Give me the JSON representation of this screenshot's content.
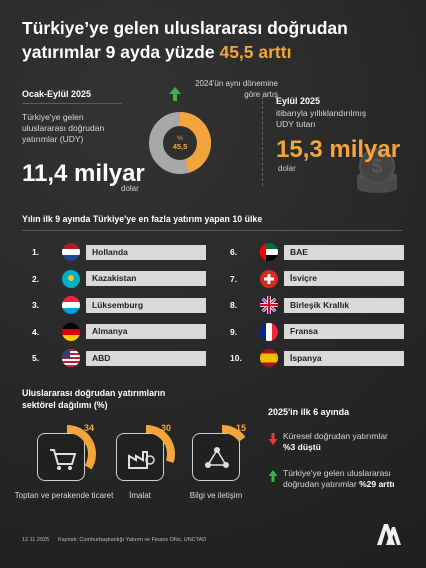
{
  "title": {
    "line1": "Türkiye’ye gelen uluslararası doğrudan",
    "line2_part1": "yatırımlar 9 ayda yüzde ",
    "line2_highlight": "45,5 arttı"
  },
  "left_block": {
    "period_label": "Ocak-Eylül 2025",
    "desc": "Türkiye'ye gelen uluslararası doğrudan yatırımlar (UDY)",
    "value": "11,4 milyar",
    "unit": "dolar"
  },
  "middle_block": {
    "note": "2024'ün aynı dönemine göre artış",
    "donut_label_pct": "%",
    "donut_label_val": "45,5",
    "arrow_icon": "up-arrow-icon"
  },
  "right_block": {
    "period_label": "Eylül 2025",
    "desc": "itibarıyla yıllıklandırılmış UDY tutarı",
    "value": "15,3 milyar",
    "unit": "dolar"
  },
  "countries_title": "Yılın ilk 9 ayında Türkiye'ye en fazla yatırım yapan 10 ülke",
  "countries": [
    {
      "rank": "1.",
      "name": "Hollanda"
    },
    {
      "rank": "2.",
      "name": "Kazakistan"
    },
    {
      "rank": "3.",
      "name": "Lüksemburg"
    },
    {
      "rank": "4.",
      "name": "Almanya"
    },
    {
      "rank": "5.",
      "name": "ABD"
    },
    {
      "rank": "6.",
      "name": "BAE"
    },
    {
      "rank": "7.",
      "name": "İsviçre"
    },
    {
      "rank": "8.",
      "name": "Birleşik Krallık"
    },
    {
      "rank": "9.",
      "name": "Fransa"
    },
    {
      "rank": "10.",
      "name": "İspanya"
    }
  ],
  "sector_title": "Uluslararası doğrudan yatırımların sektörel dağılımı (%)",
  "sectors": [
    {
      "value": "34",
      "name": "Toptan ve perakende ticaret",
      "icon": "shopping-cart-icon"
    },
    {
      "value": "30",
      "name": "İmalat",
      "icon": "factory-icon"
    },
    {
      "value": "15",
      "name": "Bilgi ve iletişim",
      "icon": "network-icon"
    }
  ],
  "global_title": "2025'in ilk 6 ayında",
  "global_items": [
    {
      "text": "Küresel doğrudan yatırımlar",
      "bold": "%3 düştü",
      "direction": "down"
    },
    {
      "text": "Türkiye'ye gelen uluslararası doğrudan yatırımlar",
      "bold": "%29 arttı",
      "direction": "up"
    }
  ],
  "footer": {
    "date": "12.11.2025",
    "source": "Kaynak: Cumhurbaşkanlığı Yatırım ve Finans Ofisi, UNCTAD",
    "logo": "AA"
  },
  "colors": {
    "accent": "#f3a53b",
    "gray": "#9a9a9a",
    "up": "#3cb44b",
    "down": "#e23b3b"
  },
  "chart_data": [
    {
      "type": "pie",
      "title": "",
      "categories": [
        "Artış"
      ],
      "values": [
        45.5
      ]
    },
    {
      "type": "pie",
      "title": "Uluslararası doğrudan yatırımların sektörel dağılımı (%)",
      "categories": [
        "Toptan ve perakende ticaret",
        "İmalat",
        "Bilgi ve iletişim"
      ],
      "values": [
        34,
        30,
        15
      ]
    }
  ]
}
